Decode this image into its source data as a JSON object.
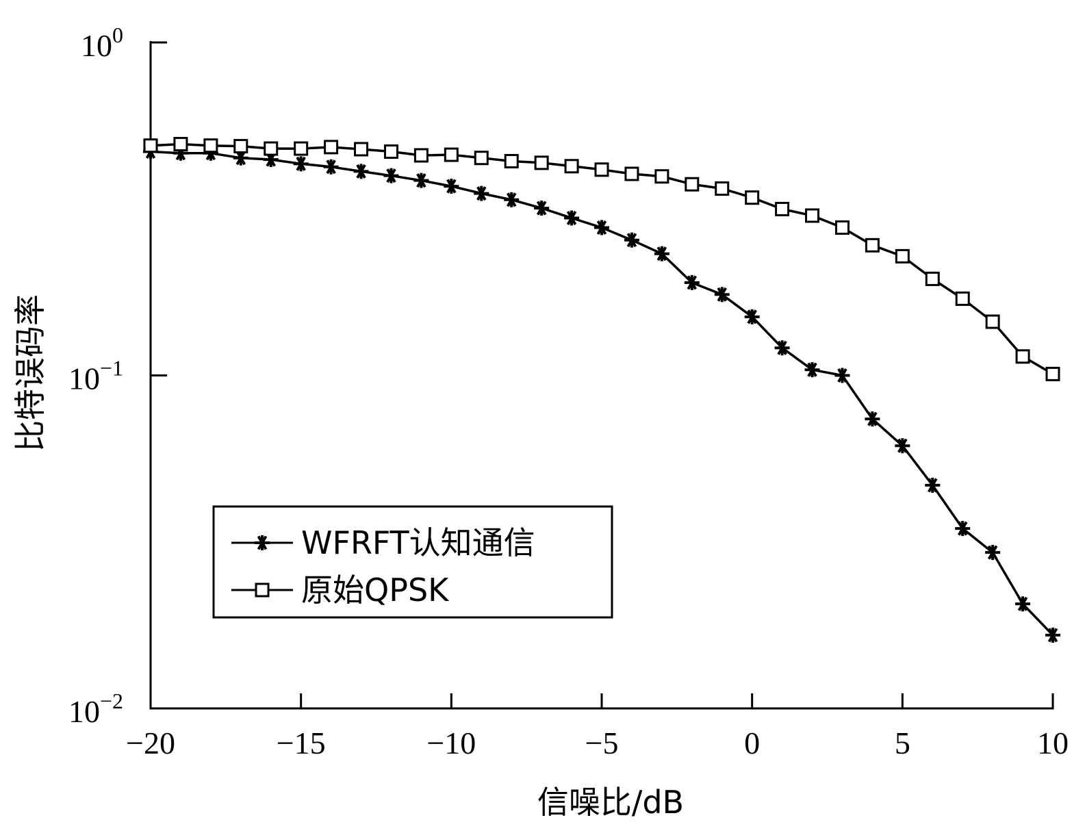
{
  "chart_data": {
    "type": "line",
    "xlabel": "信噪比/dB",
    "ylabel": "比特误码率",
    "xlim": [
      -20,
      10
    ],
    "ylim": [
      0.01,
      1
    ],
    "yscale": "log",
    "grid": false,
    "legend_position": "bottom-left",
    "x_ticks": [
      -20,
      -15,
      -10,
      -5,
      0,
      5,
      10
    ],
    "x_tick_labels": [
      "−20",
      "−15",
      "−10",
      "−5",
      "0",
      "5",
      "10"
    ],
    "y_ticks": [
      {
        "value": 1,
        "base": "10",
        "exp": "0"
      },
      {
        "value": 0.1,
        "base": "10",
        "exp": "−1"
      },
      {
        "value": 0.01,
        "base": "10",
        "exp": "−2"
      }
    ],
    "x": [
      -20,
      -19,
      -18,
      -17,
      -16,
      -15,
      -14,
      -13,
      -12,
      -11,
      -10,
      -9,
      -8,
      -7,
      -6,
      -5,
      -4,
      -3,
      -2,
      -1,
      0,
      1,
      2,
      3,
      4,
      5,
      6,
      7,
      8,
      9,
      10
    ],
    "series": [
      {
        "name": "WFRFT认知通信",
        "marker": "asterisk",
        "color": "#000000",
        "values": [
          0.47,
          0.465,
          0.465,
          0.45,
          0.445,
          0.432,
          0.423,
          0.41,
          0.398,
          0.385,
          0.37,
          0.352,
          0.337,
          0.318,
          0.297,
          0.278,
          0.255,
          0.232,
          0.19,
          0.175,
          0.15,
          0.121,
          0.104,
          0.1,
          0.074,
          0.0615,
          0.0468,
          0.0347,
          0.0294,
          0.0206,
          0.0166
        ]
      },
      {
        "name": "原始QPSK",
        "marker": "square",
        "color": "#000000",
        "values": [
          0.49,
          0.495,
          0.49,
          0.488,
          0.48,
          0.48,
          0.485,
          0.478,
          0.47,
          0.458,
          0.46,
          0.45,
          0.44,
          0.435,
          0.425,
          0.415,
          0.403,
          0.396,
          0.375,
          0.364,
          0.342,
          0.316,
          0.302,
          0.278,
          0.246,
          0.228,
          0.195,
          0.17,
          0.145,
          0.114,
          0.101
        ]
      }
    ]
  }
}
